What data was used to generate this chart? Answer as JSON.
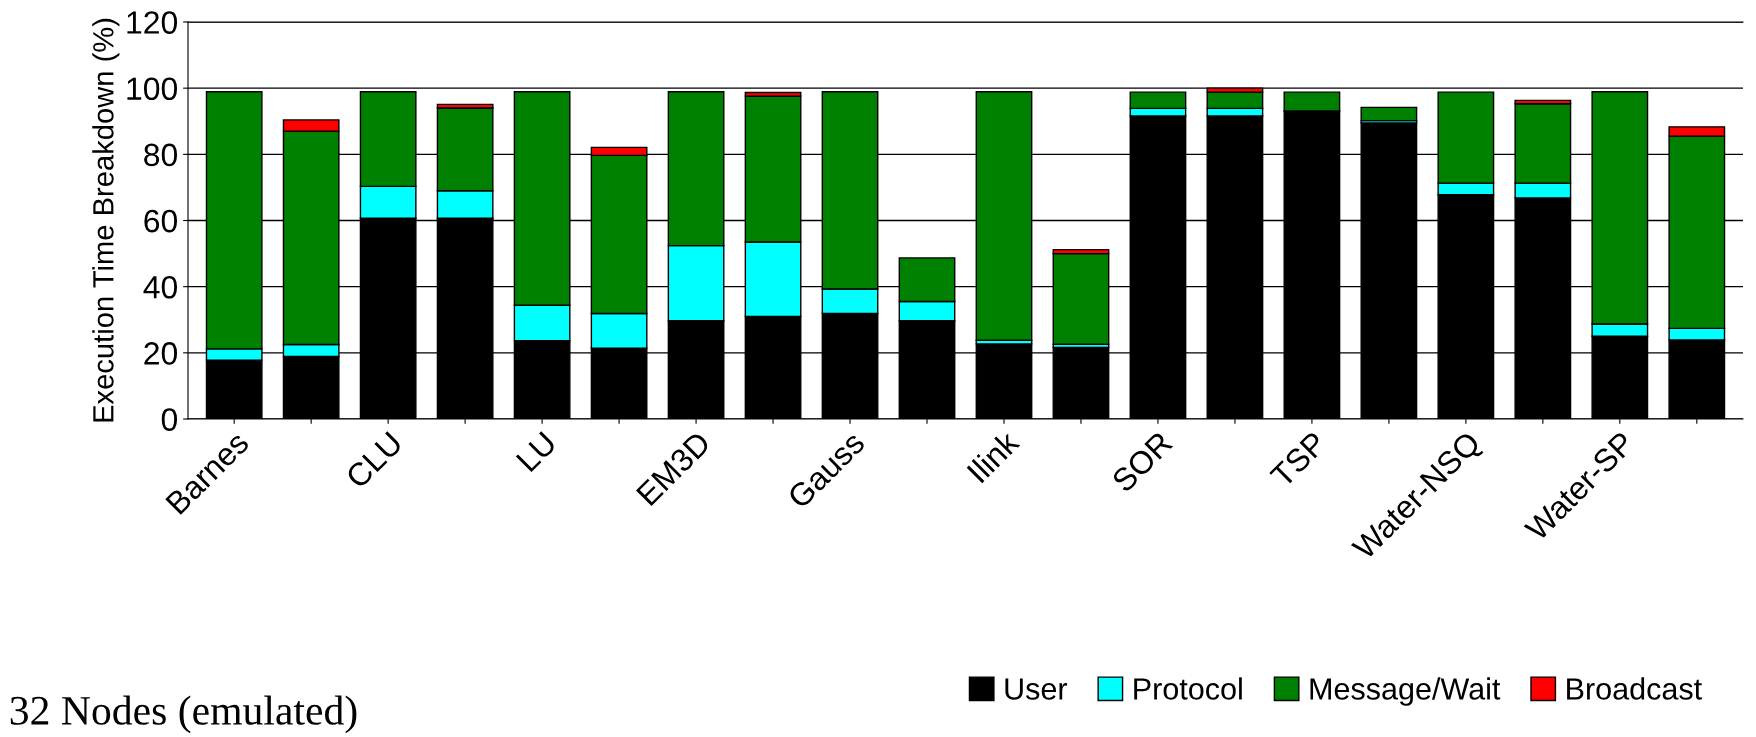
{
  "chart_data": {
    "type": "bar",
    "stacked": true,
    "ylabel": "Execution Time Breakdown (%)",
    "categories": [
      "Barnes",
      null,
      "CLU",
      null,
      "LU",
      null,
      "EM3D",
      null,
      "Gauss",
      null,
      "Ilink",
      null,
      "SOR",
      null,
      "TSP",
      null,
      "Water-NSQ",
      null,
      "Water-SP",
      null
    ],
    "series": [
      {
        "name": "User",
        "color": "#000000",
        "values": [
          17.8,
          18.9,
          60.7,
          60.7,
          23.7,
          21.4,
          29.7,
          31,
          31.9,
          29.7,
          22.7,
          21.6,
          91.6,
          91.6,
          93.1,
          89.5,
          67.8,
          66.8,
          25,
          23.9
        ]
      },
      {
        "name": "Protocol",
        "color": "#00ffff",
        "values": [
          3.4,
          3.6,
          9.6,
          8.3,
          10.7,
          10.5,
          22.7,
          22.5,
          7.4,
          5.8,
          1.1,
          1,
          2.3,
          2.3,
          null,
          0.7,
          3.5,
          4.5,
          3.7,
          3.5
        ]
      },
      {
        "name": "Message/Wait",
        "color": "#008000",
        "values": [
          77.7,
          64.5,
          28.6,
          25,
          64.5,
          47.8,
          46.5,
          44.1,
          59.6,
          13.2,
          75.1,
          27.4,
          4.9,
          4.9,
          5.7,
          4,
          27.5,
          24,
          70.2,
          58.1
        ]
      },
      {
        "name": "Broadcast",
        "color": "#ff0000",
        "values": [
          null,
          3.4,
          null,
          1.1,
          null,
          2.4,
          null,
          1.1,
          null,
          null,
          null,
          1.2,
          null,
          1.2,
          null,
          null,
          null,
          1,
          null,
          2.8
        ]
      }
    ],
    "ylim": [
      0,
      120
    ],
    "yticks": [
      0,
      20,
      40,
      60,
      80,
      100,
      120
    ],
    "grid": "y",
    "legend": "bottom right",
    "annotations": [
      "32 Nodes (emulated)"
    ]
  }
}
